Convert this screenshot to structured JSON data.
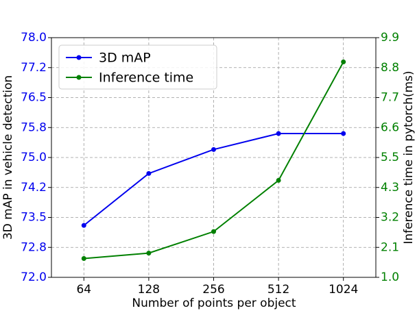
{
  "chart_data": {
    "type": "line",
    "categories": [
      "64",
      "128",
      "256",
      "512",
      "1024"
    ],
    "xlabel": "Number of points per object",
    "ylabel": "3D mAP in vehicle detection",
    "y2label": "Inference time in pytorch(ms)",
    "ylim": [
      72.0,
      78.0
    ],
    "yticks": [
      {
        "value": 72.0,
        "label": "72.0"
      },
      {
        "value": 72.75,
        "label": "72.8"
      },
      {
        "value": 73.5,
        "label": "73.5"
      },
      {
        "value": 74.25,
        "label": "74.2"
      },
      {
        "value": 75.0,
        "label": "75.0"
      },
      {
        "value": 75.75,
        "label": "75.8"
      },
      {
        "value": 76.5,
        "label": "76.5"
      },
      {
        "value": 77.25,
        "label": "77.2"
      },
      {
        "value": 78.0,
        "label": "78.0"
      }
    ],
    "y2lim": [
      1.0,
      9.9
    ],
    "y2ticks": [
      {
        "value": 1.0,
        "label": "1.0"
      },
      {
        "value": 2.1125,
        "label": "2.1"
      },
      {
        "value": 3.225,
        "label": "3.2"
      },
      {
        "value": 4.3375,
        "label": "4.3"
      },
      {
        "value": 5.45,
        "label": "5.5"
      },
      {
        "value": 6.5625,
        "label": "6.6"
      },
      {
        "value": 7.675,
        "label": "7.7"
      },
      {
        "value": 8.7875,
        "label": "8.8"
      },
      {
        "value": 9.9,
        "label": "9.9"
      }
    ],
    "grid": true,
    "legend": "upper left",
    "series": [
      {
        "name": "3D mAP",
        "color": "#0000ee",
        "values": [
          73.3,
          74.6,
          75.2,
          75.6,
          75.6
        ]
      },
      {
        "name": "Inference time",
        "color": "#008000",
        "axis": "y2",
        "values": [
          1.7,
          1.9,
          2.7,
          4.6,
          9.0
        ]
      }
    ]
  }
}
